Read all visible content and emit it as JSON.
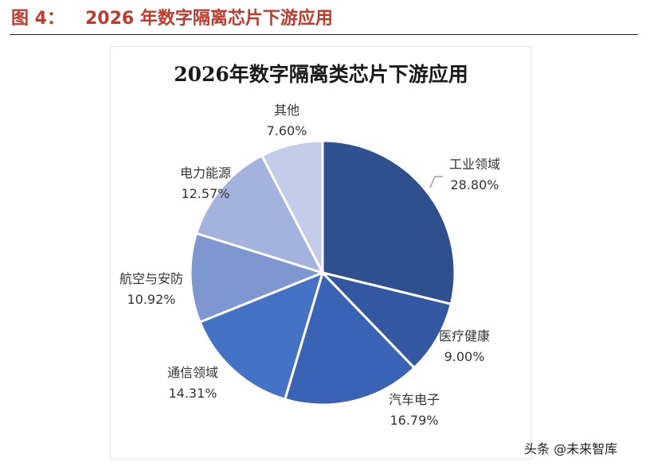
{
  "header": {
    "fig_label": "图 4：",
    "fig_title": "2026 年数字隔离芯片下游应用"
  },
  "watermark": {
    "text": "头条 @未来智库"
  },
  "chart_data": {
    "type": "pie",
    "title": "2026年数字隔离类芯片下游应用",
    "slices": [
      {
        "label": "工业领域",
        "value": 28.8,
        "value_label": "28.80%",
        "color": "#2f4f8f"
      },
      {
        "label": "医疗健康",
        "value": 9.0,
        "value_label": "9.00%",
        "color": "#3457a4"
      },
      {
        "label": "汽车电子",
        "value": 16.79,
        "value_label": "16.79%",
        "color": "#3a62b5"
      },
      {
        "label": "通信领域",
        "value": 14.31,
        "value_label": "14.31%",
        "color": "#4472c4"
      },
      {
        "label": "航空与安防",
        "value": 10.92,
        "value_label": "10.92%",
        "color": "#7e97d0"
      },
      {
        "label": "电力能源",
        "value": 12.57,
        "value_label": "12.57%",
        "color": "#a3b3de"
      },
      {
        "label": "其他",
        "value": 7.6,
        "value_label": "7.60%",
        "color": "#c3cde9"
      }
    ]
  }
}
